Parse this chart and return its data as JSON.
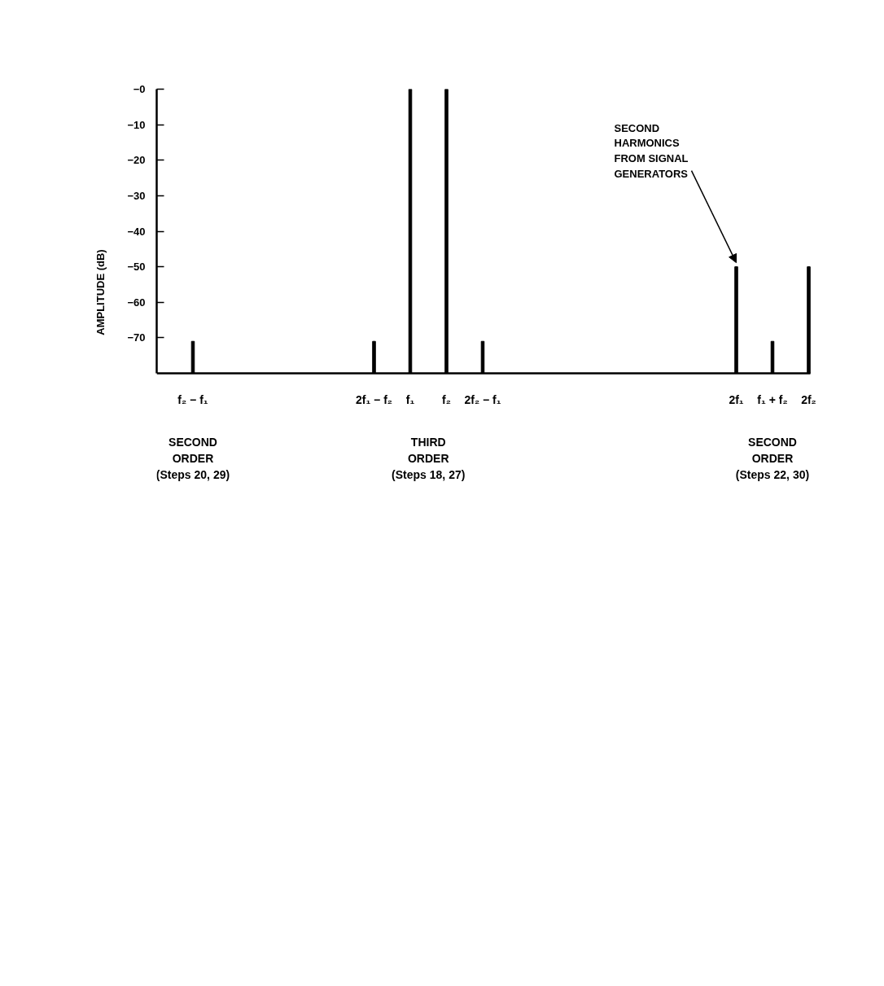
{
  "chart_data": {
    "type": "bar",
    "categories": [
      null,
      "f₂ − f₁",
      null,
      null,
      null,
      null,
      "2f₁ − f₂",
      "f₁",
      "f₂",
      "2f₂ − f₁",
      null,
      null,
      null,
      null,
      null,
      null,
      "2f₁",
      "f₁ + f₂",
      "2f₂"
    ],
    "base": [
      null,
      -80,
      null,
      null,
      null,
      null,
      -80,
      -80,
      -80,
      -80,
      null,
      null,
      null,
      null,
      null,
      null,
      -80,
      -80,
      -80
    ],
    "values": [
      null,
      9,
      null,
      null,
      null,
      null,
      9,
      80,
      80,
      9,
      null,
      null,
      null,
      null,
      null,
      null,
      30,
      9,
      30
    ],
    "color": "#000000",
    "ylabel": "AMPLITUDE (dB)",
    "ylim": [
      -80,
      0
    ],
    "yticks": [
      {
        "value": 0,
        "label": "−0"
      },
      {
        "value": -10,
        "label": "−10"
      },
      {
        "value": -20,
        "label": "−20"
      },
      {
        "value": -30,
        "label": "−30"
      },
      {
        "value": -40,
        "label": "−40"
      },
      {
        "value": -50,
        "label": "−50"
      },
      {
        "value": -60,
        "label": "−60"
      },
      {
        "value": -70,
        "label": "−70"
      }
    ],
    "annotations": [
      {
        "text": "SECOND\nHARMONICS\nFROM SIGNAL\nGENERATORS",
        "x": "2f₁",
        "y": -50
      },
      "SECOND\nORDER\n(Steps 20, 29)",
      "THIRD\nORDER\n(Steps 18, 27)",
      "SECOND\nORDER\n(Steps 22, 30)"
    ]
  }
}
